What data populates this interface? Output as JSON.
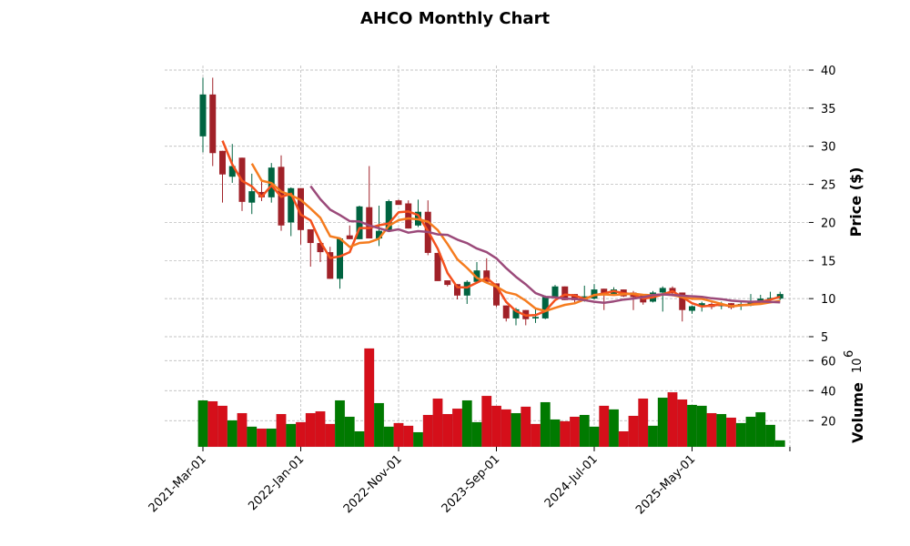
{
  "chart_data": {
    "type": "candlestick",
    "title": "AHCO Monthly Chart",
    "ylabel": "Price ($)",
    "volume_label": "Volume",
    "volume_exponent": "10",
    "volume_exponent_power": "6",
    "price_ylim": [
      5,
      40.6
    ],
    "price_ticks": [
      5,
      10,
      15,
      20,
      25,
      30,
      35,
      40
    ],
    "volume_ylim": [
      2.6,
      73.5
    ],
    "volume_ticks": [
      20,
      40,
      60
    ],
    "x_tick_indices": [
      0,
      10,
      20,
      30,
      40,
      50,
      60
    ],
    "x_tick_labels": [
      "2021-Mar-01",
      "2022-Jan-01",
      "2022-Nov-01",
      "2023-Sep-01",
      "2024-Jul-01",
      "2025-May-01",
      ""
    ],
    "grid": true,
    "moving_averages": [
      {
        "period": 3,
        "color": "#f4511e"
      },
      {
        "period": 6,
        "color": "#f57c1f"
      },
      {
        "period": 12,
        "color": "#9b4a7a"
      }
    ],
    "colors": {
      "up": "#006340",
      "down": "#a02128",
      "vol_up": "#007a00",
      "vol_down": "#d50f1a",
      "grid": "#b0b0b0"
    },
    "ohlc": [
      [
        31.3,
        39,
        29.2,
        36.8
      ],
      [
        36.8,
        39,
        27.4,
        29.1
      ],
      [
        29.4,
        29.4,
        22.6,
        26.3
      ],
      [
        26.0,
        30.3,
        25.2,
        27.4
      ],
      [
        28.5,
        28.5,
        21.5,
        22.7
      ],
      [
        22.6,
        26.4,
        21.1,
        24.1
      ],
      [
        24.0,
        25.5,
        22.8,
        23.3
      ],
      [
        23.3,
        27.8,
        22.6,
        27.2
      ],
      [
        27.3,
        28.8,
        18.9,
        19.6
      ],
      [
        20.0,
        24.6,
        18.2,
        24.5
      ],
      [
        24.5,
        24.5,
        17.1,
        19.0
      ],
      [
        19.1,
        19.1,
        14.2,
        17.3
      ],
      [
        17.3,
        17.3,
        14.8,
        16.1
      ],
      [
        16.1,
        16.8,
        12.6,
        12.6
      ],
      [
        12.6,
        18.0,
        11.3,
        17.9
      ],
      [
        18.3,
        19.6,
        17.8,
        17.8
      ],
      [
        17.8,
        22.2,
        17.8,
        22.1
      ],
      [
        22.0,
        27.4,
        17.9,
        17.9
      ],
      [
        17.9,
        22.2,
        16.9,
        18.9
      ],
      [
        18.9,
        23.0,
        18.9,
        22.8
      ],
      [
        22.9,
        23.0,
        22.3,
        22.3
      ],
      [
        22.5,
        22.9,
        19.2,
        19.2
      ],
      [
        19.6,
        23.0,
        19.4,
        21.4
      ],
      [
        21.4,
        22.9,
        15.7,
        16.0
      ],
      [
        16.0,
        16.0,
        12.3,
        12.3
      ],
      [
        12.4,
        12.4,
        11.6,
        11.8
      ],
      [
        11.9,
        11.9,
        9.9,
        10.4
      ],
      [
        10.4,
        12.4,
        9.3,
        12.2
      ],
      [
        12.2,
        14.8,
        12.0,
        13.7
      ],
      [
        13.7,
        15.3,
        12.2,
        12.2
      ],
      [
        12.0,
        12.0,
        8.9,
        9.1
      ],
      [
        9.1,
        9.1,
        7.0,
        7.4
      ],
      [
        7.4,
        8.8,
        6.5,
        8.6
      ],
      [
        8.5,
        8.5,
        6.5,
        7.3
      ],
      [
        7.4,
        8.6,
        6.8,
        7.6
      ],
      [
        7.4,
        10.4,
        7.3,
        10.2
      ],
      [
        10.2,
        11.8,
        10.0,
        11.6
      ],
      [
        11.6,
        11.6,
        9.8,
        9.8
      ],
      [
        10.6,
        10.6,
        9.5,
        9.8
      ],
      [
        9.8,
        11.7,
        9.6,
        10.3
      ],
      [
        10.0,
        11.9,
        9.9,
        11.2
      ],
      [
        11.3,
        11.3,
        8.5,
        10.6
      ],
      [
        10.6,
        11.5,
        10.4,
        11.2
      ],
      [
        11.2,
        11.2,
        10.2,
        10.3
      ],
      [
        10.8,
        11.0,
        8.5,
        10.2
      ],
      [
        10.6,
        10.6,
        9.2,
        9.5
      ],
      [
        9.6,
        11.0,
        9.5,
        10.8
      ],
      [
        10.8,
        11.6,
        8.3,
        11.4
      ],
      [
        11.4,
        11.6,
        10.3,
        10.7
      ],
      [
        10.8,
        10.8,
        7.0,
        8.5
      ],
      [
        8.4,
        9.1,
        8.0,
        9.0
      ],
      [
        9.0,
        9.6,
        8.3,
        9.4
      ],
      [
        9.3,
        9.5,
        8.6,
        8.9
      ],
      [
        9.0,
        9.6,
        8.6,
        9.3
      ],
      [
        9.4,
        9.4,
        8.6,
        8.8
      ],
      [
        9.0,
        9.6,
        8.5,
        9.3
      ],
      [
        9.1,
        10.6,
        9.0,
        9.5
      ],
      [
        9.6,
        10.5,
        9.5,
        10.0
      ],
      [
        10.0,
        10.9,
        9.7,
        10.1
      ],
      [
        10.0,
        10.9,
        9.8,
        10.6
      ]
    ],
    "volume": [
      33.5,
      32.9,
      29.9,
      20.2,
      25,
      16,
      14.7,
      14.7,
      24.4,
      17.8,
      19,
      25,
      26.2,
      17.8,
      33.5,
      22.6,
      12.9,
      68.1,
      31.7,
      16,
      18.4,
      16.6,
      12.3,
      23.8,
      34.7,
      24.4,
      28,
      33.5,
      19,
      36.5,
      29.9,
      27.5,
      25,
      29.3,
      17.8,
      32.3,
      20.8,
      19.6,
      22.6,
      23.8,
      16,
      29.9,
      27.5,
      12.9,
      23.2,
      34.7,
      16.6,
      35.3,
      38.9,
      34.1,
      30.5,
      29.9,
      25,
      24.4,
      22,
      18.4,
      22.6,
      25.6,
      17.2,
      6.9
    ],
    "volume_up": [
      1,
      0,
      0,
      1,
      0,
      1,
      0,
      1,
      0,
      1,
      0,
      0,
      0,
      0,
      1,
      1,
      1,
      0,
      1,
      1,
      0,
      0,
      1,
      0,
      0,
      0,
      0,
      1,
      1,
      0,
      0,
      0,
      1,
      0,
      0,
      1,
      1,
      0,
      0,
      1,
      1,
      0,
      1,
      0,
      0,
      0,
      1,
      1,
      0,
      0,
      1,
      1,
      0,
      1,
      0,
      1,
      1,
      1,
      1,
      1
    ]
  }
}
